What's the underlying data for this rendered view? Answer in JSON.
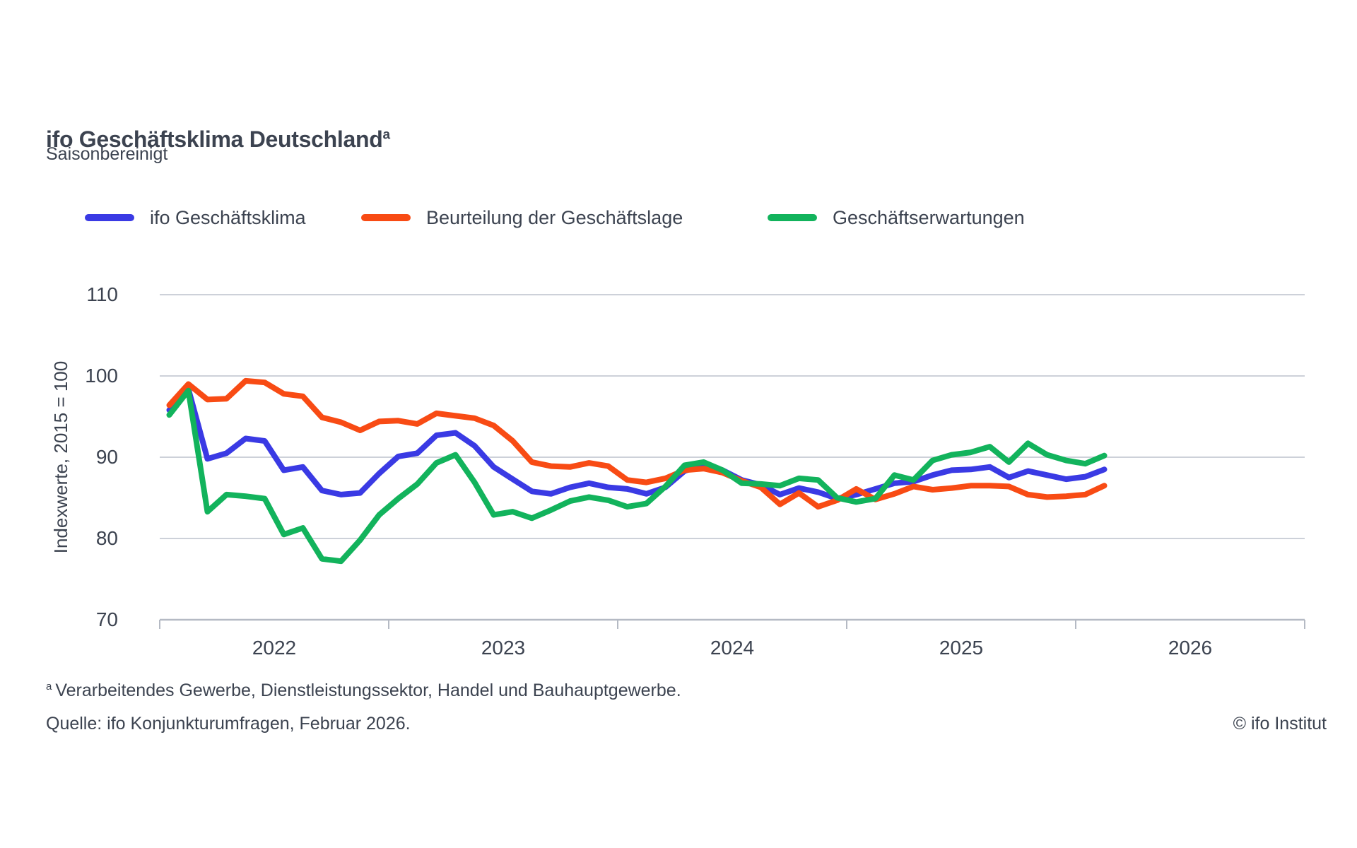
{
  "header": {
    "title": "ifo Geschäftsklima Deutschland",
    "title_superscript": "a",
    "subtitle": "Saisonbereinigt"
  },
  "legend": [
    {
      "id": "ifo-geschaeftsklima",
      "label": "ifo Geschäftsklima",
      "color": "#3A3AE4"
    },
    {
      "id": "beurteilung-der-geschaeftslage",
      "label": "Beurteilung der Geschäftslage",
      "color": "#F84B14"
    },
    {
      "id": "geschaeftserwartungen",
      "label": "Geschäftserwartungen",
      "color": "#12B35C"
    }
  ],
  "chart_data": {
    "type": "line",
    "title": "ifo Geschäftsklima Deutschland",
    "subtitle": "Saisonbereinigt",
    "ylabel": "Indexwerte, 2015 = 100",
    "ylim": [
      70,
      113
    ],
    "y_ticks": [
      110,
      100,
      90,
      80,
      70
    ],
    "x_years": [
      "2022",
      "2023",
      "2024",
      "2025",
      "2026"
    ],
    "x_start": "2022-01",
    "x_end": "2026-02",
    "frequency": "monthly",
    "grid": true,
    "legend_position": "top",
    "style": {
      "grid_color": "#CDD1D9",
      "axis_color": "#B5BAC4",
      "text_color": "#3C4350"
    },
    "series": [
      {
        "id": "ifo-geschaeftsklima",
        "name": "ifo Geschäftsklima",
        "color": "#3A3AE4",
        "values": [
          95.8,
          98.4,
          89.8,
          90.5,
          92.3,
          92.0,
          88.4,
          88.8,
          85.9,
          85.4,
          85.6,
          88.0,
          90.1,
          90.5,
          92.7,
          93.0,
          91.4,
          88.8,
          87.3,
          85.8,
          85.5,
          86.3,
          86.8,
          86.3,
          86.1,
          85.5,
          86.3,
          88.3,
          89.1,
          88.4,
          87.2,
          86.6,
          85.4,
          86.2,
          85.7,
          84.9,
          85.4,
          86.1,
          86.8,
          87.0,
          87.8,
          88.4,
          88.5,
          88.8,
          87.5,
          88.3,
          87.8,
          87.3,
          87.6,
          88.5
        ]
      },
      {
        "id": "beurteilung-der-geschaeftslage",
        "name": "Beurteilung der Geschäftslage",
        "color": "#F84B14",
        "values": [
          96.4,
          99.0,
          97.1,
          97.2,
          99.4,
          99.2,
          97.8,
          97.5,
          94.9,
          94.3,
          93.3,
          94.4,
          94.5,
          94.1,
          95.4,
          95.1,
          94.8,
          93.9,
          92.0,
          89.4,
          88.9,
          88.8,
          89.3,
          88.9,
          87.2,
          86.9,
          87.4,
          88.4,
          88.6,
          88.1,
          87.1,
          86.3,
          84.2,
          85.6,
          83.9,
          84.7,
          86.1,
          84.8,
          85.5,
          86.4,
          86.0,
          86.2,
          86.5,
          86.5,
          86.4,
          85.4,
          85.1,
          85.2,
          85.4,
          86.5
        ]
      },
      {
        "id": "geschaeftserwartungen",
        "name": "Geschäftserwartungen",
        "color": "#12B35C",
        "values": [
          95.2,
          98.2,
          83.3,
          85.4,
          85.2,
          84.9,
          80.5,
          81.3,
          77.5,
          77.2,
          79.8,
          82.9,
          84.9,
          86.7,
          89.3,
          90.3,
          86.9,
          82.9,
          83.3,
          82.5,
          83.5,
          84.6,
          85.1,
          84.7,
          83.9,
          84.3,
          86.4,
          89.0,
          89.4,
          88.4,
          86.8,
          86.7,
          86.5,
          87.4,
          87.2,
          85.0,
          84.5,
          84.9,
          87.8,
          87.2,
          89.6,
          90.3,
          90.6,
          91.3,
          89.4,
          91.7,
          90.3,
          89.6,
          89.2,
          90.2
        ]
      }
    ]
  },
  "footer": {
    "footnote_marker": "a",
    "footnote": "Verarbeitendes Gewerbe, Dienstleistungssektor, Handel und Bauhauptgewerbe.",
    "source": "Quelle: ifo Konjunkturumfragen, Februar 2026.",
    "copyright": "© ifo Institut"
  }
}
